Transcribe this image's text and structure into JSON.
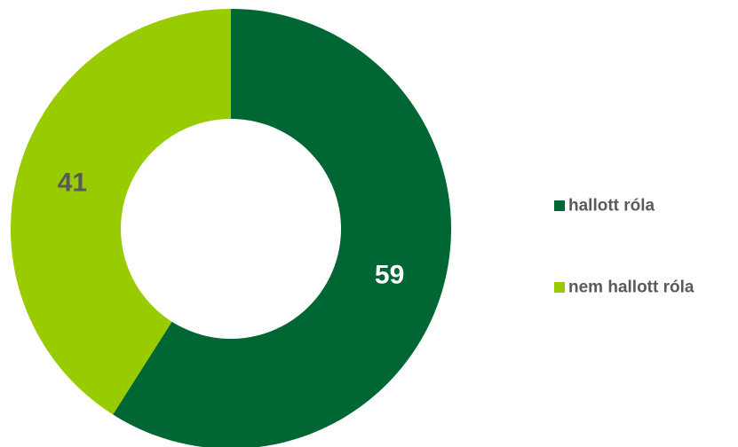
{
  "chart_data": {
    "type": "pie",
    "variant": "donut",
    "series": [
      {
        "name": "hallott róla",
        "value": 59,
        "label": "59",
        "color": "#006633",
        "label_color": "#ffffff"
      },
      {
        "name": "nem hallott róla",
        "value": 41,
        "label": "41",
        "color": "#99cc00",
        "label_color": "#5a5a5a"
      }
    ],
    "start_angle_deg": 0,
    "direction": "clockwise",
    "legend": {
      "position": "right",
      "entries": [
        "hallott róla",
        "nem hallott róla"
      ]
    }
  }
}
